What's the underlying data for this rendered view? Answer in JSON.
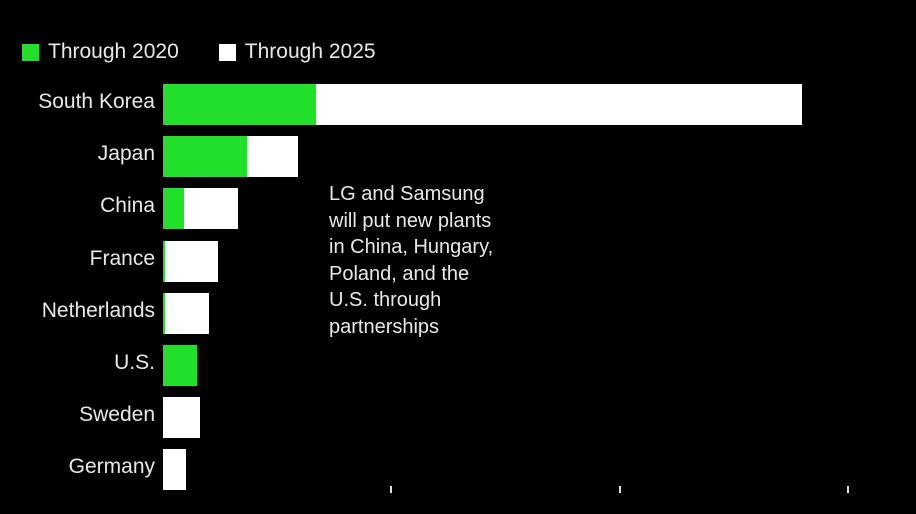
{
  "chart_data": {
    "type": "bar",
    "orientation": "horizontal",
    "stacked": true,
    "title": "",
    "categories": [
      "South Korea",
      "Japan",
      "China",
      "France",
      "Netherlands",
      "U.S.",
      "Sweden",
      "Germany"
    ],
    "series": [
      {
        "name": "Through 2020",
        "color": "#22e02a",
        "values": [
          67,
          37,
          9,
          1,
          1,
          15,
          0,
          0
        ]
      },
      {
        "name": "Through 2025",
        "color": "#ffffff",
        "values": [
          280,
          59,
          33,
          24,
          20,
          15,
          16,
          10
        ]
      }
    ],
    "xlim": [
      0,
      300
    ],
    "xticks": [
      100,
      200,
      300
    ],
    "xtick_labels": [],
    "grid": false,
    "legend_position": "top-left",
    "annotation": [
      "LG and Samsung",
      "will put new plants",
      "in China, Hungary,",
      "Poland, and the",
      "U.S. through",
      "partnerships"
    ]
  }
}
